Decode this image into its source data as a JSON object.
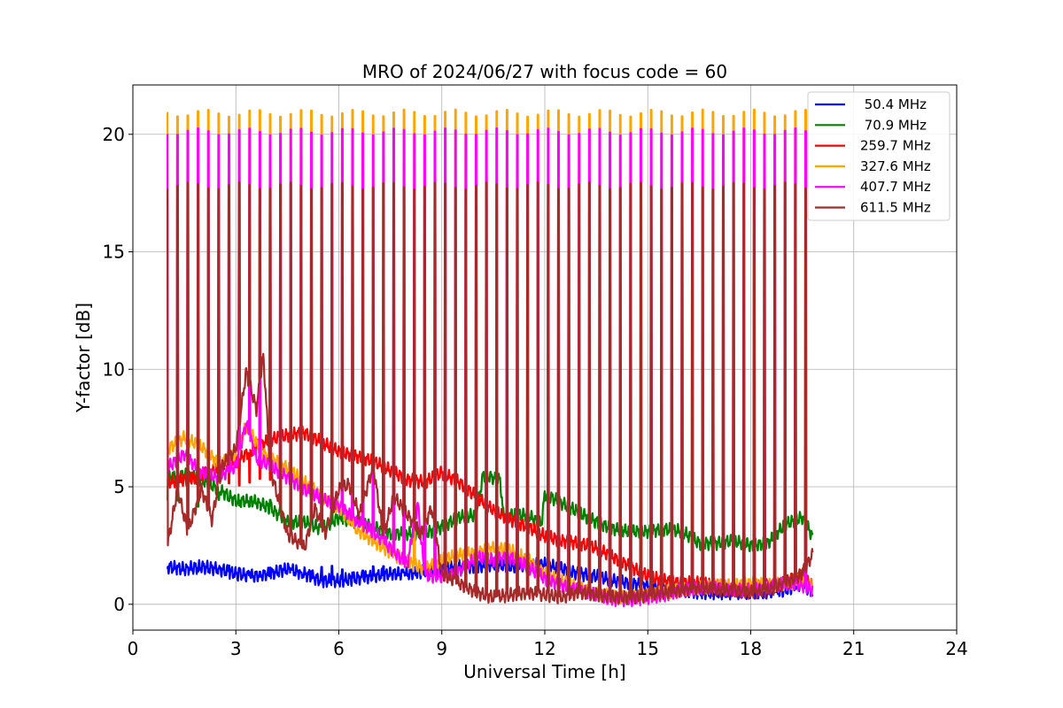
{
  "chart_data": {
    "type": "line",
    "title": "MRO of 2024/06/27 with focus code = 60",
    "xlabel": "Universal Time [h]",
    "ylabel": "Y-factor [dB]",
    "xlim": [
      0,
      24
    ],
    "ylim": [
      -1.1,
      22.1
    ],
    "xticks": [
      0,
      3,
      6,
      9,
      12,
      15,
      18,
      21,
      24
    ],
    "yticks": [
      0,
      5,
      10,
      15,
      20
    ],
    "grid": true,
    "legend_position": "top-right",
    "calibration_pulses": {
      "start_h": 1.0,
      "end_h": 19.8,
      "period_h": 0.3,
      "count": 63
    },
    "series": [
      {
        "name": " 50.4 MHz",
        "color": "#0000ff",
        "pulse_peak": 1.5,
        "x": [
          1.0,
          1.5,
          2.0,
          2.5,
          3.0,
          3.5,
          4.0,
          4.5,
          5.0,
          5.5,
          6.0,
          6.5,
          7.0,
          7.5,
          8.0,
          8.5,
          9.0,
          9.5,
          10.0,
          10.5,
          11.0,
          11.5,
          12.0,
          12.5,
          13.0,
          13.5,
          14.0,
          14.5,
          15.0,
          15.5,
          16.0,
          16.5,
          17.0,
          17.5,
          18.0,
          18.5,
          19.0,
          19.5,
          19.8
        ],
        "y": [
          1.6,
          1.5,
          1.6,
          1.5,
          1.3,
          1.2,
          1.3,
          1.5,
          1.3,
          1.0,
          1.0,
          1.1,
          1.2,
          1.3,
          1.3,
          1.4,
          1.5,
          1.6,
          1.6,
          1.7,
          1.6,
          1.7,
          1.7,
          1.5,
          1.3,
          1.2,
          1.0,
          0.9,
          0.8,
          0.7,
          0.6,
          0.5,
          0.5,
          0.5,
          0.5,
          0.5,
          0.6,
          0.9,
          0.5
        ]
      },
      {
        "name": " 70.9 MHz",
        "color": "#008000",
        "pulse_peak": 4.3,
        "x": [
          1.0,
          1.5,
          2.0,
          2.5,
          3.0,
          3.5,
          4.0,
          4.5,
          5.0,
          5.5,
          6.0,
          6.5,
          7.0,
          7.5,
          8.0,
          8.5,
          9.0,
          9.5,
          10.0,
          10.2,
          10.7,
          10.8,
          11.0,
          11.5,
          11.9,
          12.0,
          12.5,
          13.0,
          13.5,
          14.0,
          14.5,
          15.0,
          15.5,
          16.0,
          16.5,
          17.0,
          17.5,
          18.0,
          18.5,
          19.0,
          19.5,
          19.8
        ],
        "y": [
          5.4,
          5.5,
          5.3,
          4.9,
          4.4,
          4.4,
          4.1,
          3.5,
          3.5,
          3.2,
          3.7,
          3.5,
          3.3,
          3.0,
          3.0,
          3.0,
          3.3,
          3.7,
          3.8,
          5.5,
          5.3,
          3.7,
          3.8,
          3.8,
          3.4,
          4.7,
          4.3,
          3.9,
          3.5,
          3.2,
          3.1,
          3.1,
          3.2,
          3.1,
          2.6,
          2.6,
          2.7,
          2.5,
          2.6,
          3.4,
          3.7,
          2.9
        ]
      },
      {
        "name": "259.7 MHz",
        "color": "#ff0000",
        "pulse_peak": 5.2,
        "x": [
          1.0,
          1.5,
          2.0,
          2.5,
          3.0,
          3.5,
          4.0,
          4.5,
          5.0,
          5.5,
          6.0,
          6.5,
          7.0,
          7.5,
          8.0,
          8.5,
          9.0,
          9.5,
          10.0,
          10.5,
          11.0,
          11.5,
          12.0,
          12.5,
          13.0,
          13.5,
          14.0,
          14.5,
          15.0,
          15.5,
          16.0,
          16.5,
          17.0,
          17.5,
          18.0,
          18.5,
          19.0,
          19.5,
          19.8
        ],
        "y": [
          5.2,
          5.3,
          5.5,
          5.8,
          6.1,
          6.6,
          7.0,
          7.2,
          7.3,
          6.9,
          6.5,
          6.3,
          6.1,
          5.7,
          5.3,
          5.2,
          5.6,
          5.2,
          4.6,
          4.0,
          3.6,
          3.3,
          2.9,
          2.7,
          2.6,
          2.4,
          2.0,
          1.6,
          1.2,
          1.0,
          0.9,
          0.9,
          0.8,
          0.6,
          0.7,
          0.8,
          0.9,
          1.3,
          0.7
        ]
      },
      {
        "name": "327.6 MHz",
        "color": "#ffa500",
        "pulse_peak": 20.9,
        "x": [
          1.0,
          1.5,
          2.0,
          2.5,
          3.0,
          3.3,
          3.8,
          4.5,
          5.0,
          5.5,
          6.0,
          6.5,
          7.0,
          7.5,
          8.0,
          8.5,
          9.0,
          9.5,
          10.0,
          10.5,
          11.0,
          11.5,
          12.0,
          12.5,
          13.0,
          13.5,
          14.0,
          14.5,
          15.0,
          15.5,
          16.0,
          16.5,
          17.0,
          17.5,
          18.0,
          18.5,
          19.0,
          19.5,
          19.8
        ],
        "y": [
          6.6,
          7.1,
          6.7,
          6.0,
          6.4,
          7.6,
          6.4,
          5.8,
          5.2,
          4.6,
          4.1,
          3.2,
          2.7,
          2.2,
          1.8,
          1.5,
          1.9,
          2.1,
          2.2,
          2.4,
          2.3,
          1.9,
          1.3,
          1.0,
          0.7,
          0.5,
          0.3,
          0.3,
          0.4,
          0.5,
          0.6,
          0.7,
          0.8,
          0.8,
          0.9,
          0.8,
          0.9,
          1.0,
          0.8
        ]
      },
      {
        "name": "407.7 MHz",
        "color": "#ff00ff",
        "pulse_peak": 20.1,
        "x": [
          1.0,
          1.5,
          2.0,
          2.5,
          3.0,
          3.3,
          3.6,
          4.0,
          4.5,
          5.0,
          5.5,
          6.0,
          6.5,
          7.0,
          7.5,
          8.0,
          8.3,
          8.5,
          9.0,
          9.5,
          10.0,
          10.5,
          11.0,
          11.5,
          12.0,
          12.5,
          13.0,
          13.5,
          14.0,
          14.5,
          15.0,
          15.5,
          16.0,
          16.5,
          17.0,
          17.5,
          18.0,
          18.5,
          19.0,
          19.5,
          19.8
        ],
        "y": [
          5.8,
          6.4,
          5.6,
          5.4,
          5.9,
          7.7,
          6.2,
          5.9,
          5.4,
          4.9,
          4.5,
          4.2,
          3.6,
          3.1,
          2.4,
          1.7,
          4.3,
          1.2,
          1.2,
          1.4,
          2.0,
          1.9,
          2.0,
          1.6,
          1.1,
          0.8,
          0.6,
          0.4,
          0.2,
          0.2,
          0.3,
          0.4,
          0.6,
          0.7,
          0.7,
          0.6,
          0.6,
          0.7,
          0.9,
          0.8,
          0.6
        ]
      },
      {
        "name": "611.5 MHz",
        "color": "#a52a2a",
        "pulse_peak": 17.8,
        "x": [
          1.0,
          1.3,
          1.6,
          2.0,
          2.3,
          2.6,
          3.0,
          3.3,
          3.6,
          3.8,
          4.0,
          4.5,
          5.0,
          5.3,
          5.6,
          6.0,
          6.3,
          6.6,
          7.0,
          7.3,
          7.6,
          8.0,
          8.4,
          8.7,
          9.0,
          9.5,
          10.0,
          10.5,
          11.0,
          11.5,
          12.0,
          12.5,
          13.0,
          13.5,
          14.0,
          14.5,
          15.0,
          15.5,
          16.0,
          16.5,
          17.0,
          17.5,
          18.0,
          18.5,
          19.0,
          19.5,
          19.8
        ],
        "y": [
          2.4,
          4.9,
          3.1,
          4.9,
          3.6,
          5.9,
          6.6,
          9.9,
          8.3,
          10.6,
          5.8,
          3.0,
          2.4,
          4.1,
          3.0,
          4.9,
          5.1,
          3.8,
          5.9,
          2.9,
          4.6,
          3.8,
          3.0,
          4.1,
          1.3,
          0.9,
          0.5,
          0.3,
          0.4,
          0.5,
          0.4,
          0.3,
          0.5,
          0.4,
          0.3,
          0.3,
          0.4,
          0.5,
          0.6,
          0.7,
          0.6,
          0.6,
          0.5,
          0.6,
          0.9,
          1.3,
          2.1
        ]
      }
    ]
  }
}
